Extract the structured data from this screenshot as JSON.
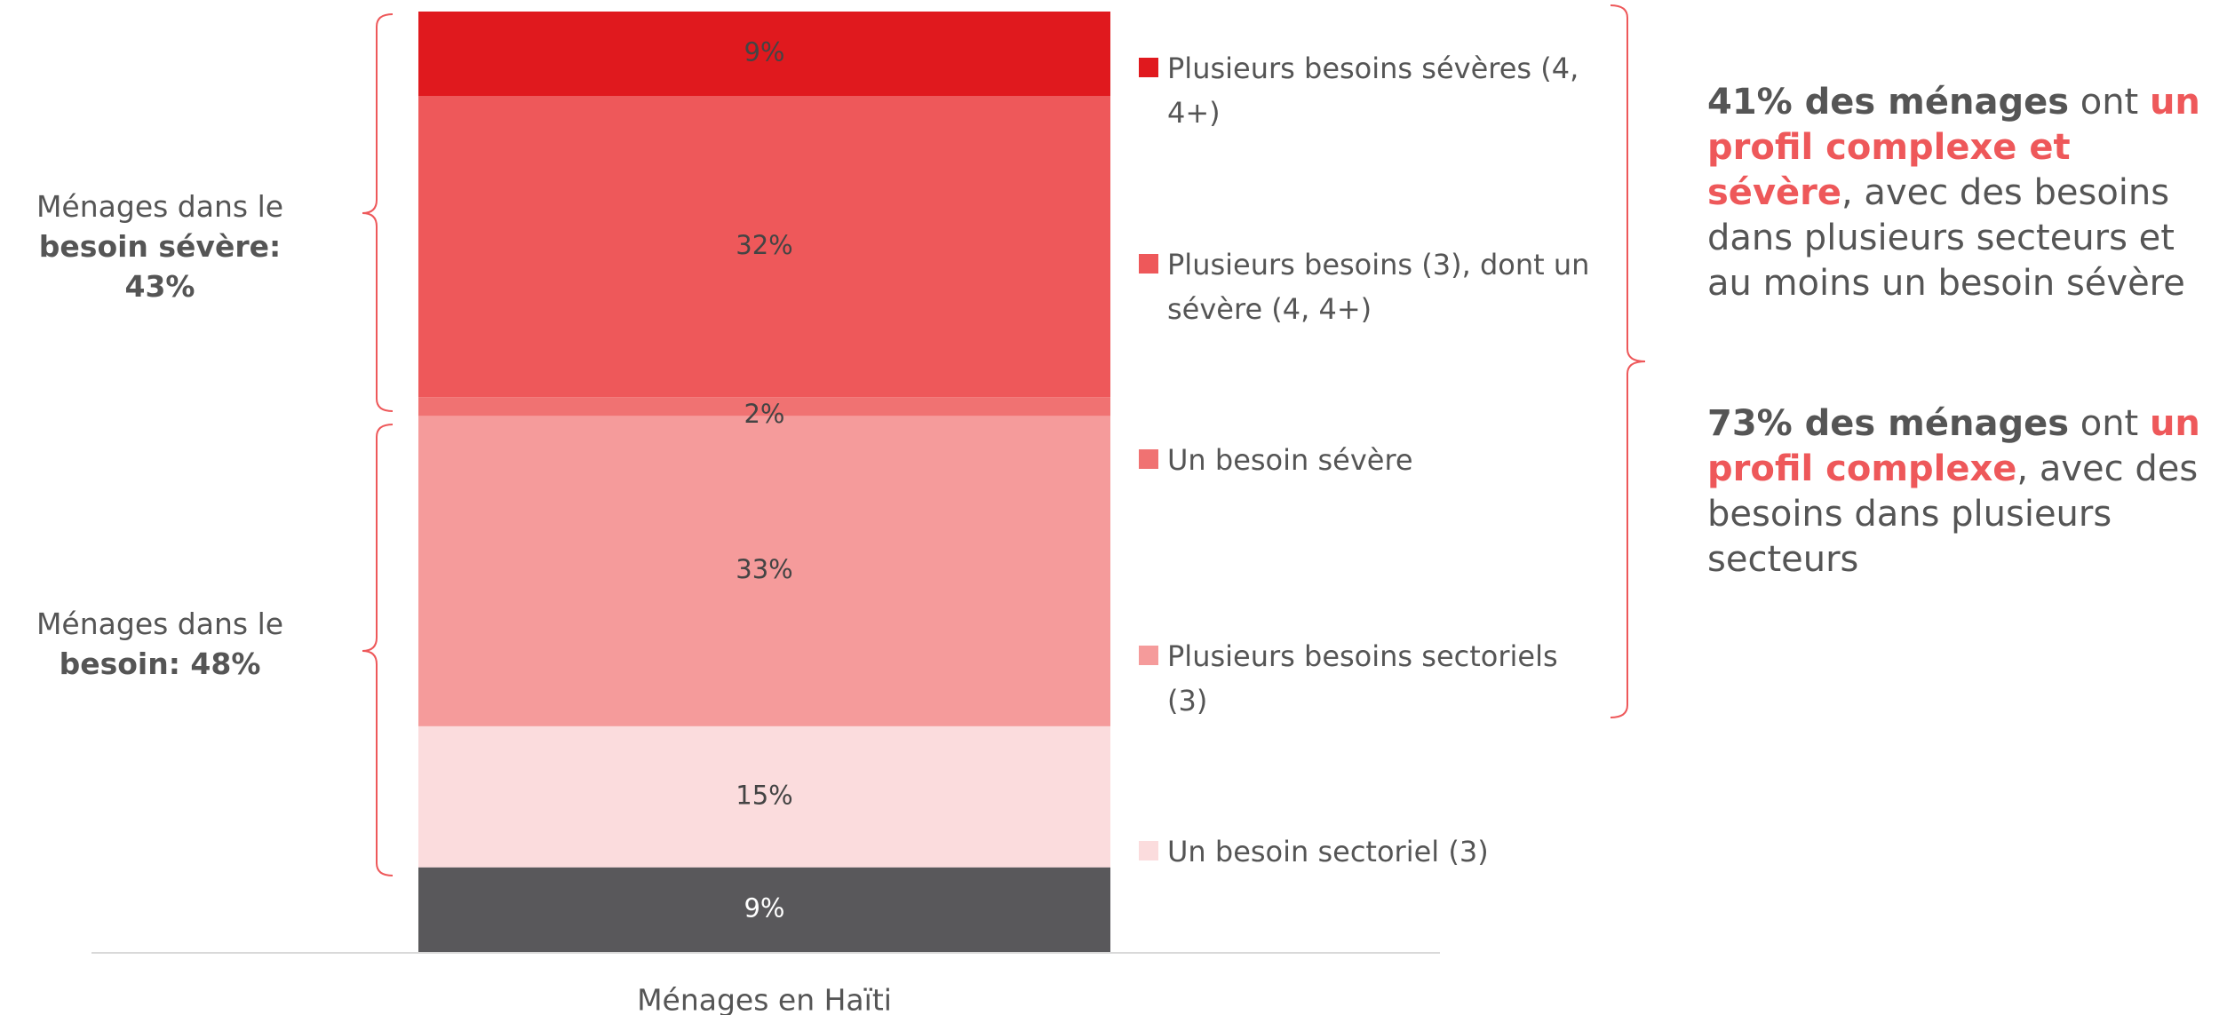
{
  "chart_data": {
    "type": "stacked_bar",
    "categories": [
      "Ménages en Haïti"
    ],
    "ylim": [
      0,
      100
    ],
    "series": [
      {
        "name": null,
        "color": "#59585b",
        "values": [
          9
        ],
        "value_labels": [
          "9%"
        ]
      },
      {
        "name": "Un besoin sectoriel (3)",
        "color": "#fbdcdd",
        "values": [
          15
        ],
        "value_labels": [
          "15%"
        ]
      },
      {
        "name": "Plusieurs besoins sectoriels (3)",
        "color": "#f59b9b",
        "values": [
          33
        ],
        "value_labels": [
          "33%"
        ]
      },
      {
        "name": "Un besoin sévère",
        "color": "#f07272",
        "values": [
          2
        ],
        "value_labels": [
          "2%"
        ]
      },
      {
        "name": "Plusieurs besoins (3), dont un sévère (4, 4+)",
        "color": "#ee585a",
        "values": [
          32
        ],
        "value_labels": [
          "32%"
        ]
      },
      {
        "name": "Plusieurs besoins sévères (4, 4+)",
        "color": "#e0191e",
        "values": [
          9
        ],
        "value_labels": [
          "9%"
        ]
      }
    ],
    "left_annotations": [
      {
        "lines": [
          "Ménages dans le",
          "besoin sévère: 43%"
        ]
      },
      {
        "lines": [
          "Ménages dans le",
          "besoin: 48%"
        ]
      }
    ],
    "right_annotations": [
      {
        "parts": [
          {
            "text": "41% des ménages",
            "style": "bold"
          },
          {
            "text": " ont ",
            "style": "normal"
          },
          {
            "text": "un profil complexe et sévère",
            "style": "red"
          },
          {
            "text": ", avec des besoins dans plusieurs secteurs et au moins un besoin sévère",
            "style": "normal"
          }
        ]
      },
      {
        "parts": [
          {
            "text": "73% des ménages",
            "style": "bold"
          },
          {
            "text": " ont ",
            "style": "normal"
          },
          {
            "text": "un profil complexe",
            "style": "red"
          },
          {
            "text": ", avec des besoins dans plusieurs secteurs",
            "style": "normal"
          }
        ]
      }
    ]
  }
}
